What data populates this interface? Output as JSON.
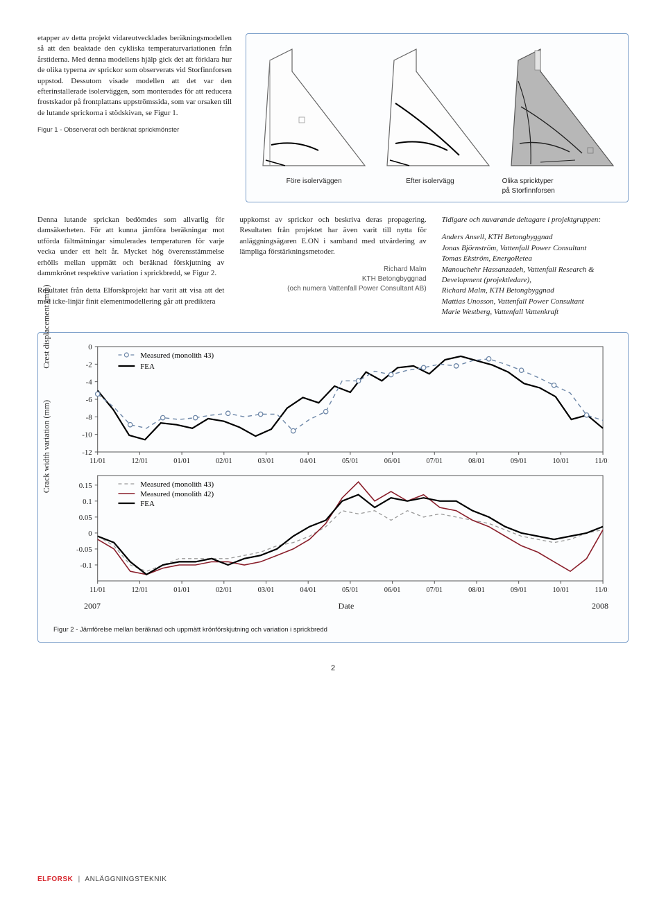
{
  "text": {
    "para1a": "etapper av detta projekt vidareutvecklades beräkningsmodellen så att den beaktade den cykliska temperaturvariationen från årstiderna. Med denna modellens hjälp gick det att förklara hur de olika typerna av sprickor som observerats vid Storfinnforsen uppstod. Dessutom visade modellen att det var den efterinstallerade isolerväggen, som monterades för att reducera frostskador på frontplattans uppströmssida, som var orsaken till de lutande sprickorna i stödskivan, se Figur 1.",
    "fig1_caption": "Figur 1 - Observerat och beräknat sprickmönster",
    "fig1_label1": "Före isolerväggen",
    "fig1_label2": "Efter isolervägg",
    "fig1_label3a": "Olika spricktyper",
    "fig1_label3b": "på Storfinnforsen",
    "col1_p1": "Denna lutande sprickan bedömdes som allvarlig för damsäkerheten. För att kunna jämföra beräkningar mot utförda fältmätningar simulerades temperaturen för varje vecka under ett helt år. Mycket hög överensstämmelse erhölls mellan uppmätt och beräknad förskjutning av dammkrönet respektive variation i sprickbredd, se Figur 2.",
    "col1_p2": "Resultatet från detta Elforskprojekt har varit att visa att det med icke-linjär finit elementmodellering går att prediktera",
    "col2_p1": "uppkomst av sprickor och beskriva deras propagering. Resultaten från projektet har även varit till nytta för anläggningsägaren E.ON i samband med utvärdering av lämpliga förstärkningsmetoder.",
    "author1": "Richard Malm",
    "author2": "KTH Betongbyggnad",
    "author3": "(och numera Vattenfall Power Consultant AB)",
    "participants_hdr": "Tidigare och nuvarande deltagare i projektgruppen:",
    "p_list": [
      "Anders Ansell, KTH Betongbyggnad",
      "Jonas Björnström, Vattenfall Power Consultant",
      "Tomas Ekström, EnergoRetea",
      "Manouchehr Hassanzadeh, Vattenfall Research & Development (projektledare),",
      "Richard Malm, KTH Betongbyggnad",
      "Mattias Unosson, Vattenfall Power Consultant",
      "Marie Westberg, Vattenfall Vattenkraft"
    ],
    "fig2_caption": "Figur 2 - Jämförelse mellan beräknad och uppmätt krönförskjutning och variation i sprickbredd"
  },
  "chart1": {
    "ylabel": "Crest displacement (mm)",
    "ylim": [
      -12,
      0
    ],
    "yticks": [
      0,
      -2,
      -4,
      -6,
      -8,
      -10,
      -12
    ],
    "xticks": [
      "11/01",
      "12/01",
      "01/01",
      "02/01",
      "03/01",
      "04/01",
      "05/01",
      "06/01",
      "07/01",
      "08/01",
      "09/01",
      "10/01",
      "11/01"
    ],
    "legend": [
      {
        "label": "Measured (monolith 43)",
        "style": "dashed-circle",
        "color": "#6d87a8"
      },
      {
        "label": "FEA",
        "style": "solid",
        "color": "#000000"
      }
    ],
    "measured": [
      -5.4,
      -6.9,
      -8.9,
      -9.3,
      -8.1,
      -8.3,
      -8.1,
      -7.8,
      -7.6,
      -8.0,
      -7.7,
      -7.7,
      -9.6,
      -8.3,
      -7.4,
      -3.9,
      -3.9,
      -2.8,
      -3.2,
      -2.7,
      -2.4,
      -2.0,
      -2.2,
      -1.6,
      -1.4,
      -2.0,
      -2.7,
      -3.5,
      -4.4,
      -5.3,
      -7.8,
      -8.4
    ],
    "fea": [
      -5.0,
      -7.2,
      -10.1,
      -10.6,
      -8.7,
      -8.9,
      -9.3,
      -8.2,
      -8.5,
      -9.2,
      -10.2,
      -9.4,
      -7.0,
      -5.8,
      -6.4,
      -4.5,
      -5.2,
      -2.9,
      -3.9,
      -2.4,
      -2.2,
      -3.1,
      -1.5,
      -1.1,
      -1.6,
      -2.1,
      -2.9,
      -4.2,
      -4.7,
      -5.7,
      -8.3,
      -7.8,
      -9.3
    ],
    "colors": {
      "measured": "#6d87a8",
      "fea": "#000000",
      "grid": "#d9d9d9",
      "axis": "#555555",
      "bg": "#ffffff"
    }
  },
  "chart2": {
    "ylabel": "Crack width variation (mm)",
    "ylim": [
      -0.15,
      0.18
    ],
    "yticks": [
      0.15,
      0.1,
      0.05,
      0,
      -0.05,
      -0.1
    ],
    "xticks": [
      "11/01",
      "12/01",
      "01/01",
      "02/01",
      "03/01",
      "04/01",
      "05/01",
      "06/01",
      "07/01",
      "08/01",
      "09/01",
      "10/01",
      "11/01"
    ],
    "xlabel": "Date",
    "year_left": "2007",
    "year_right": "2008",
    "legend": [
      {
        "label": "Measured (monolith 43)",
        "style": "dashed-gray",
        "color": "#9a9a9a"
      },
      {
        "label": "Measured (monolith 42)",
        "style": "solid-red",
        "color": "#8a1f2b"
      },
      {
        "label": "FEA",
        "style": "solid",
        "color": "#000000"
      }
    ],
    "m43": [
      -0.01,
      -0.04,
      -0.1,
      -0.12,
      -0.1,
      -0.08,
      -0.08,
      -0.08,
      -0.08,
      -0.07,
      -0.06,
      -0.04,
      -0.03,
      -0.01,
      0.02,
      0.07,
      0.06,
      0.07,
      0.04,
      0.07,
      0.05,
      0.06,
      0.05,
      0.04,
      0.03,
      0.01,
      -0.01,
      -0.02,
      -0.03,
      -0.02,
      0.0,
      0.01
    ],
    "m42": [
      -0.02,
      -0.05,
      -0.12,
      -0.13,
      -0.11,
      -0.1,
      -0.1,
      -0.09,
      -0.09,
      -0.1,
      -0.09,
      -0.07,
      -0.05,
      -0.02,
      0.03,
      0.11,
      0.16,
      0.1,
      0.13,
      0.1,
      0.12,
      0.08,
      0.07,
      0.04,
      0.02,
      -0.01,
      -0.04,
      -0.06,
      -0.09,
      -0.12,
      -0.08,
      0.01
    ],
    "fea": [
      -0.01,
      -0.03,
      -0.09,
      -0.13,
      -0.1,
      -0.09,
      -0.09,
      -0.08,
      -0.1,
      -0.08,
      -0.07,
      -0.05,
      -0.01,
      0.02,
      0.04,
      0.1,
      0.12,
      0.08,
      0.11,
      0.1,
      0.11,
      0.1,
      0.1,
      0.07,
      0.05,
      0.02,
      0.0,
      -0.01,
      -0.02,
      -0.01,
      0.0,
      0.02
    ],
    "colors": {
      "m43": "#9a9a9a",
      "m42": "#8a1f2b",
      "fea": "#000000",
      "grid": "#d9d9d9",
      "axis": "#555555",
      "bg": "#ffffff"
    }
  },
  "footer": {
    "page_num": "2",
    "brand": "ELFORSK",
    "section": "ANLÄGGNINGSTEKNIK"
  }
}
